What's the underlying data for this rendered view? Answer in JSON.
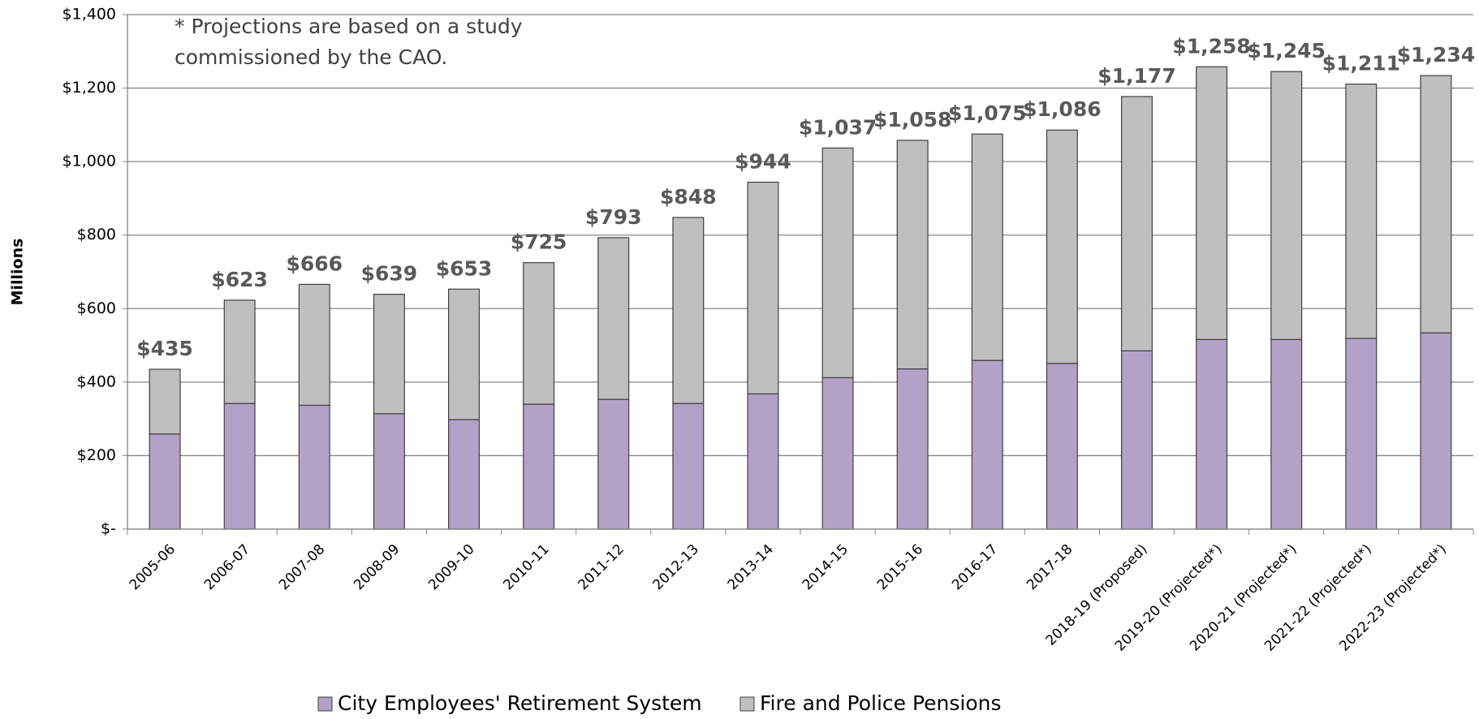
{
  "chart_data": {
    "type": "stacked_bar",
    "annotation": [
      "* Projections are based on a study",
      "commissioned by the CAO."
    ],
    "y_label": "Millions",
    "categories": [
      "2005-06",
      "2006-07",
      "2007-08",
      "2008-09",
      "2009-10",
      "2010-11",
      "2011-12",
      "2012-13",
      "2013-14",
      "2014-15",
      "2015-16",
      "2016-17",
      "2017-18",
      "2018-19 (Proposed)",
      "2019-20 (Projected*)",
      "2020-21 (Projected*)",
      "2021-22 (Projected*)",
      "2022-23 (Projected*)"
    ],
    "series": [
      {
        "name": "City Employees' Retirement System",
        "color": "#b3a2c7",
        "values": [
          259,
          342,
          337,
          314,
          298,
          340,
          353,
          342,
          368,
          412,
          436,
          459,
          451,
          485,
          516,
          516,
          519,
          534
        ]
      },
      {
        "name": "Fire and Police Pensions",
        "color": "#bfbfbf",
        "values": [
          176,
          281,
          329,
          325,
          355,
          385,
          440,
          506,
          576,
          625,
          622,
          616,
          635,
          692,
          742,
          729,
          692,
          700
        ]
      }
    ],
    "totals": [
      435,
      623,
      666,
      639,
      653,
      725,
      793,
      848,
      944,
      1037,
      1058,
      1075,
      1086,
      1177,
      1258,
      1245,
      1211,
      1234
    ],
    "total_labels": [
      "$435",
      "$623",
      "$666",
      "$639",
      "$653",
      "$725",
      "$793",
      "$848",
      "$944",
      "$1,037",
      "$1,058",
      "$1,075",
      "$1,086",
      "$1,177",
      "$1,258",
      "$1,245",
      "$1,211",
      "$1,234"
    ],
    "ylim": [
      0,
      1400
    ],
    "yticks": [
      {
        "value": 0,
        "label": "$-"
      },
      {
        "value": 200,
        "label": "$200"
      },
      {
        "value": 400,
        "label": "$400"
      },
      {
        "value": 600,
        "label": "$600"
      },
      {
        "value": 800,
        "label": "$800"
      },
      {
        "value": 1000,
        "label": "$1,000"
      },
      {
        "value": 1200,
        "label": "$1,200"
      },
      {
        "value": 1400,
        "label": "$1,400"
      }
    ],
    "grid": true
  }
}
